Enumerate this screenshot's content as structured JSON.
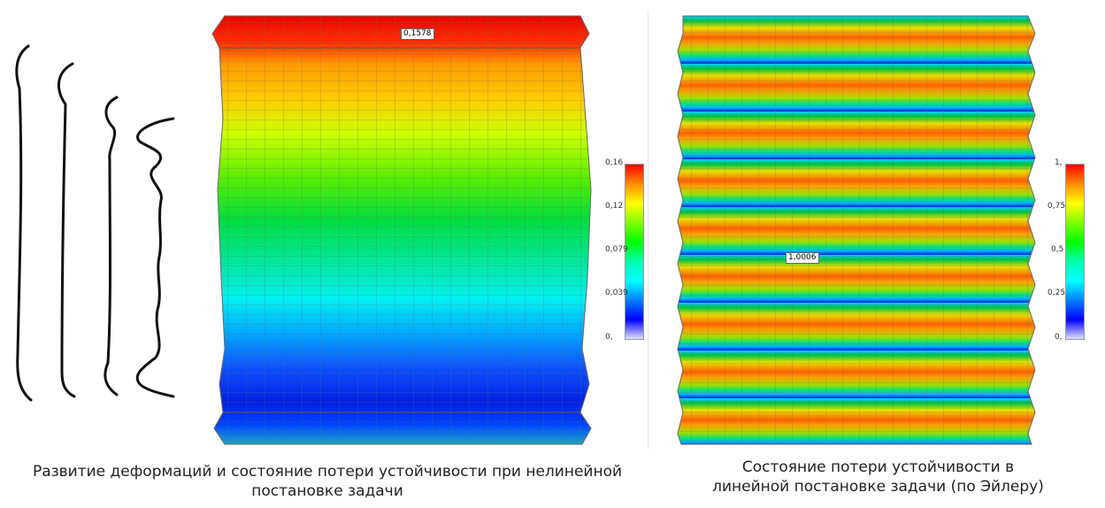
{
  "left_panel": {
    "max_label": "0,1578",
    "scale": {
      "ticks": [
        "0,16",
        "0,12",
        "0,079",
        "0,039",
        "0,"
      ],
      "colors": [
        "#ff0000",
        "#ff8c00",
        "#ffff00",
        "#7fff00",
        "#00ff00",
        "#00ffb0",
        "#00ffff",
        "#0080ff",
        "#0000ff",
        "#d8d8ff"
      ]
    },
    "caption_line1": "Развитие деформаций и состояние потери устойчивости при нелинейной",
    "caption_line2": "постановке задачи"
  },
  "right_panel": {
    "max_label": "1,0006",
    "scale": {
      "ticks": [
        "1,",
        "0,75",
        "0,5",
        "0,25",
        "0,"
      ],
      "colors": [
        "#ff0000",
        "#ff8c00",
        "#ffff00",
        "#7fff00",
        "#00ff00",
        "#00ffb0",
        "#00ffff",
        "#0080ff",
        "#0000ff",
        "#d8d8ff"
      ]
    },
    "caption_line1": "Состояние потери устойчивости в",
    "caption_line2": "линейной постановке задачи (по Эйлеру)"
  }
}
